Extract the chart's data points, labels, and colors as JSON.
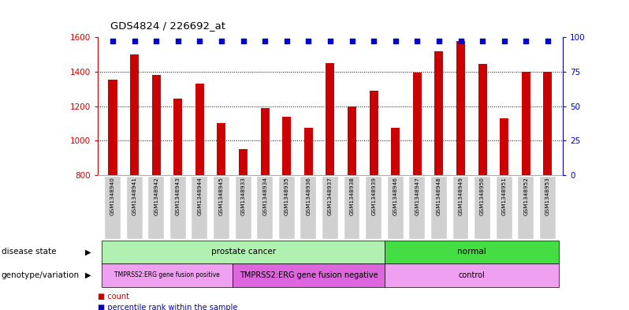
{
  "title": "GDS4824 / 226692_at",
  "samples": [
    "GSM1348940",
    "GSM1348941",
    "GSM1348942",
    "GSM1348943",
    "GSM1348944",
    "GSM1348945",
    "GSM1348933",
    "GSM1348934",
    "GSM1348935",
    "GSM1348936",
    "GSM1348937",
    "GSM1348938",
    "GSM1348939",
    "GSM1348946",
    "GSM1348947",
    "GSM1348948",
    "GSM1348949",
    "GSM1348950",
    "GSM1348951",
    "GSM1348952",
    "GSM1348953"
  ],
  "counts": [
    1355,
    1500,
    1380,
    1245,
    1330,
    1100,
    950,
    1190,
    1140,
    1075,
    1450,
    1200,
    1290,
    1075,
    1395,
    1520,
    1580,
    1445,
    1130,
    1400,
    1400
  ],
  "ylim_left": [
    800,
    1600
  ],
  "ylim_right": [
    0,
    100
  ],
  "yticks_left": [
    800,
    1000,
    1200,
    1400,
    1600
  ],
  "yticks_right": [
    0,
    25,
    50,
    75,
    100
  ],
  "bar_color": "#cc0000",
  "dot_color": "#0000cc",
  "dot_percentile": 97,
  "disease_state_groups": [
    {
      "label": "prostate cancer",
      "start": 0,
      "end": 13,
      "color": "#b0f0b0"
    },
    {
      "label": "normal",
      "start": 13,
      "end": 21,
      "color": "#44dd44"
    }
  ],
  "genotype_groups": [
    {
      "label": "TMPRSS2:ERG gene fusion positive",
      "start": 0,
      "end": 6,
      "color": "#f0a0f0"
    },
    {
      "label": "TMPRSS2:ERG gene fusion negative",
      "start": 6,
      "end": 13,
      "color": "#dd66dd"
    },
    {
      "label": "control",
      "start": 13,
      "end": 21,
      "color": "#f0a0f0"
    }
  ],
  "label_disease_state": "disease state",
  "label_genotype": "genotype/variation",
  "legend_count_color": "#cc0000",
  "legend_dot_color": "#0000cc",
  "bg_color": "#ffffff",
  "tick_color_left": "#cc0000",
  "tick_color_right": "#0000cc",
  "xtick_bg": "#d0d0d0"
}
